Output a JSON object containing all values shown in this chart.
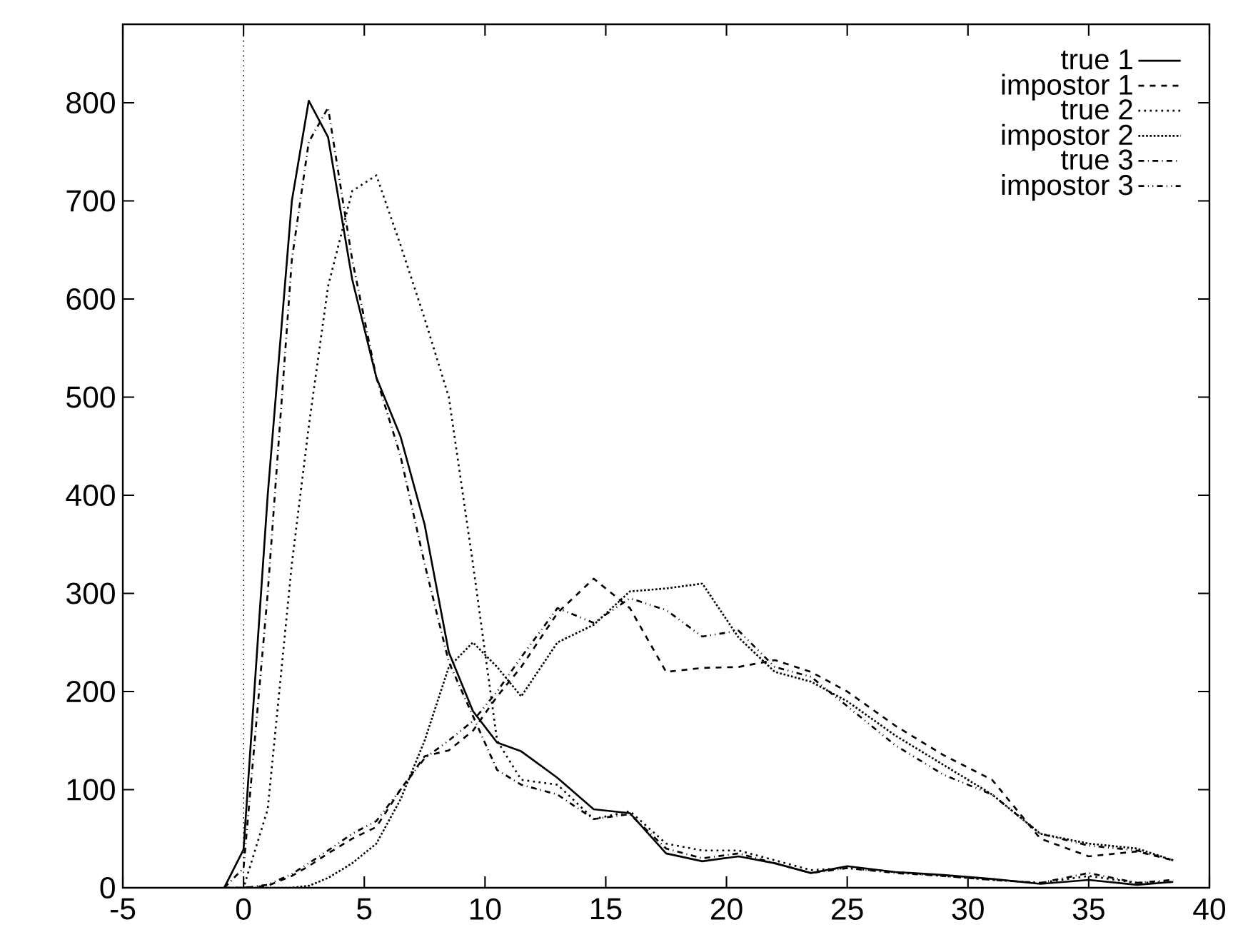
{
  "chart_data": {
    "type": "line",
    "x": [
      -0.8,
      0,
      1,
      2,
      2.7,
      3.5,
      4.5,
      5.5,
      6.5,
      7.5,
      8.5,
      9.5,
      10.5,
      11.5,
      13,
      14.5,
      16,
      17.5,
      19,
      20.5,
      22,
      23.5,
      25,
      27,
      29,
      31,
      33,
      35,
      37,
      38.5
    ],
    "series": [
      {
        "name": "true 1",
        "color": "#000000",
        "line_style": "solid",
        "values": [
          0,
          39,
          400,
          700,
          802,
          765,
          620,
          520,
          460,
          370,
          240,
          180,
          148,
          139,
          112,
          80,
          76,
          35,
          27,
          32,
          25,
          15,
          22,
          16,
          13,
          9,
          4,
          8,
          3,
          6
        ]
      },
      {
        "name": "impostor 1",
        "color": "#000000",
        "line_style": "dashed",
        "values": [
          0,
          0,
          2,
          12,
          22,
          35,
          50,
          62,
          100,
          134,
          140,
          160,
          195,
          225,
          280,
          315,
          285,
          220,
          224,
          225,
          232,
          220,
          200,
          165,
          135,
          110,
          50,
          32,
          37,
          28
        ]
      },
      {
        "name": "true 2",
        "color": "#000000",
        "line_style": "dotted",
        "values": [
          0,
          0,
          80,
          330,
          470,
          613,
          710,
          726,
          655,
          580,
          500,
          330,
          150,
          110,
          105,
          70,
          78,
          45,
          38,
          38,
          28,
          18,
          20,
          16,
          12,
          8,
          5,
          12,
          5,
          6
        ]
      },
      {
        "name": "impostor 2",
        "color": "#000000",
        "line_style": "densely dotted",
        "values": [
          0,
          0,
          0,
          0,
          2,
          10,
          25,
          45,
          90,
          150,
          225,
          250,
          225,
          195,
          250,
          268,
          302,
          305,
          310,
          255,
          220,
          210,
          190,
          155,
          125,
          95,
          55,
          45,
          40,
          28
        ]
      },
      {
        "name": "true 3",
        "color": "#000000",
        "line_style": "dashdotted",
        "values": [
          0,
          20,
          300,
          640,
          760,
          795,
          640,
          520,
          440,
          330,
          230,
          175,
          120,
          105,
          95,
          70,
          75,
          40,
          30,
          35,
          25,
          15,
          20,
          15,
          12,
          8,
          5,
          15,
          5,
          8
        ]
      },
      {
        "name": "impostor 3",
        "color": "#000000",
        "line_style": "dashdotdotted",
        "values": [
          0,
          0,
          3,
          14,
          25,
          38,
          55,
          68,
          100,
          132,
          150,
          170,
          200,
          235,
          285,
          270,
          295,
          283,
          256,
          262,
          225,
          215,
          185,
          145,
          115,
          95,
          55,
          43,
          38,
          28
        ]
      }
    ],
    "xlim": [
      -5,
      40
    ],
    "ylim": [
      0,
      880
    ],
    "xticks": [
      -5,
      0,
      5,
      10,
      15,
      20,
      25,
      30,
      35,
      40
    ],
    "yticks": [
      0,
      100,
      200,
      300,
      400,
      500,
      600,
      700,
      800
    ],
    "ref_lines": [
      {
        "axis": "x",
        "value": 0,
        "color": "#000000",
        "line_style": "dotted"
      }
    ],
    "legend": "top right"
  }
}
